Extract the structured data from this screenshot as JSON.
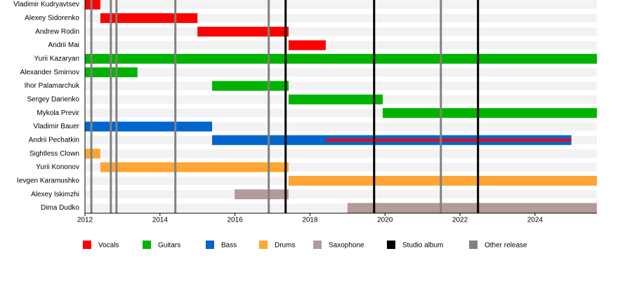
{
  "chart_data": {
    "type": "timeline",
    "categories": [
      "Vladimir Kudryavtsev",
      "Alexey Sidorenko",
      "Andrew Rodin",
      "Andrii Mai",
      "Yurii Kazaryan",
      "Alexander Smirnov",
      "Ihor Palamarchuk",
      "Sergey Darienko",
      "Mykola Previr",
      "Vladimir Bauer",
      "Andrii Pechatkin",
      "Sightless Clown",
      "Yurii Kononov",
      "Ievgen Karamushko",
      "Alexey Iskimzhi",
      "Dima Dudko"
    ],
    "series": [
      {
        "name": "Vocals",
        "color": "#ff0000",
        "values": [
          [
            2012.0,
            2012.41
          ],
          [
            2012.41,
            2015.0
          ],
          [
            2015.0,
            2017.43
          ],
          [
            2017.43,
            2018.42
          ],
          null,
          null,
          null,
          null,
          null,
          null,
          [
            2018.42,
            2024.97
          ],
          null,
          null,
          null,
          null,
          null
        ]
      },
      {
        "name": "Guitars",
        "color": "#00b300",
        "values": [
          null,
          null,
          null,
          null,
          [
            2012.0,
            2025.65
          ],
          [
            2012.0,
            2013.4
          ],
          [
            2015.39,
            2017.43
          ],
          [
            2017.43,
            2019.94
          ],
          [
            2019.94,
            2025.65
          ],
          null,
          null,
          null,
          null,
          null,
          null,
          null
        ]
      },
      {
        "name": "Bass",
        "color": "#0066cc",
        "values": [
          null,
          null,
          null,
          null,
          null,
          null,
          null,
          null,
          null,
          [
            2012.0,
            2015.39
          ],
          [
            2015.39,
            2024.97
          ],
          null,
          null,
          null,
          null,
          null
        ]
      },
      {
        "name": "Drums",
        "color": "#ffa533",
        "values": [
          null,
          null,
          null,
          null,
          null,
          null,
          null,
          null,
          null,
          null,
          null,
          [
            2012.0,
            2012.41
          ],
          [
            2012.41,
            2017.43
          ],
          [
            2017.43,
            2025.65
          ],
          null,
          null
        ]
      },
      {
        "name": "Saxophone",
        "color": "#b39b9b",
        "values": [
          null,
          null,
          null,
          null,
          null,
          null,
          null,
          null,
          null,
          null,
          null,
          null,
          null,
          null,
          [
            2015.99,
            2017.43
          ],
          [
            2019.0,
            2025.65
          ]
        ]
      }
    ],
    "events": [
      {
        "name": "Studio album",
        "color": "#000000",
        "values": [
          2017.35,
          2019.71,
          2022.48
        ]
      },
      {
        "name": "Other release",
        "color": "#808080",
        "values": [
          2012.17,
          2012.69,
          2012.84,
          2014.41,
          2016.9,
          2021.49
        ]
      }
    ],
    "xlim": [
      2012,
      2025.65
    ],
    "xticks": [
      2012,
      2014,
      2016,
      2018,
      2020,
      2022,
      2024
    ]
  }
}
